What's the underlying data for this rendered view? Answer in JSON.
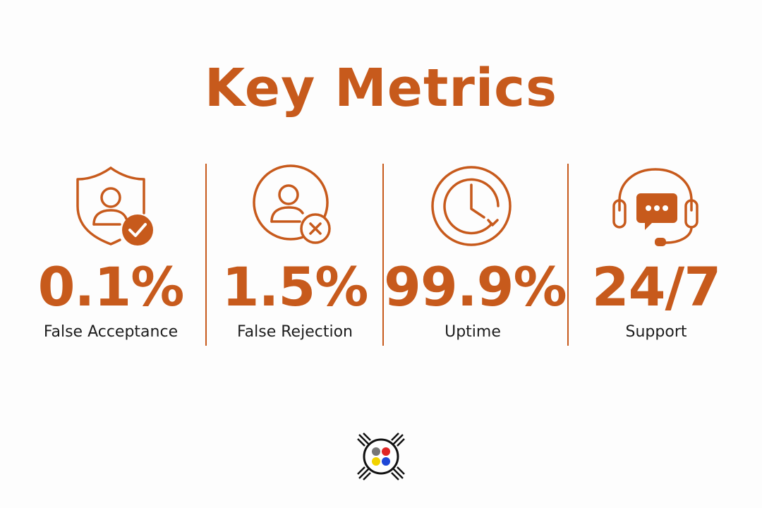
{
  "title": "Key Metrics",
  "metrics": [
    {
      "value": "0.1%",
      "label": "False Acceptance"
    },
    {
      "value": "1.5%",
      "label": "False Rejection"
    },
    {
      "value": "99.9%",
      "label": "Uptime"
    },
    {
      "value": "24/7",
      "label": "Support"
    }
  ]
}
